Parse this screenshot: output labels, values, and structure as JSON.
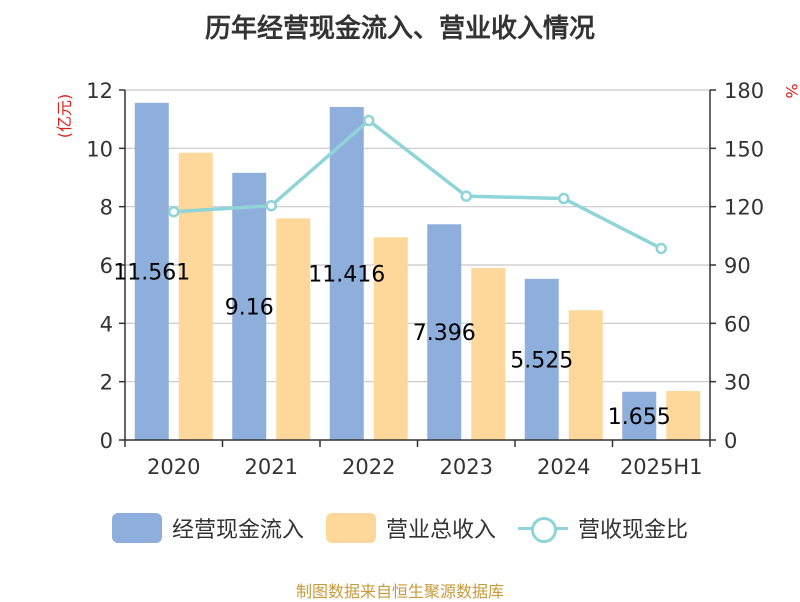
{
  "title": "历年经营现金流入、营业收入情况",
  "source": "制图数据来自恒生聚源数据库",
  "left_unit": "(亿元)",
  "right_unit": "%",
  "legend": [
    "经营现金流入",
    "营业总收入",
    "营收现金比"
  ],
  "colors": {
    "cash_inflow": "#8eaedb",
    "revenue": "#fdd89a",
    "ratio": "#8ed4d8",
    "axis_unit": "#e0201c"
  },
  "chart_data": {
    "type": "bar",
    "categories": [
      "2020",
      "2021",
      "2022",
      "2023",
      "2024",
      "2025H1"
    ],
    "series": [
      {
        "name": "经营现金流入",
        "type": "bar",
        "axis": "left",
        "values": [
          11.561,
          9.16,
          11.416,
          7.396,
          5.525,
          1.655
        ],
        "labels": [
          "11.561",
          "9.16",
          "11.416",
          "7.396",
          "5.525",
          "1.655"
        ]
      },
      {
        "name": "营业总收入",
        "type": "bar",
        "axis": "left",
        "values": [
          9.85,
          7.6,
          6.95,
          5.9,
          4.45,
          1.68
        ]
      },
      {
        "name": "营收现金比",
        "type": "line",
        "axis": "right",
        "values": [
          117.4,
          120.5,
          164.3,
          125.4,
          124.2,
          98.5
        ]
      }
    ],
    "left_axis": {
      "ylim": [
        0,
        12
      ],
      "ticks": [
        "0",
        "2",
        "4",
        "6",
        "8",
        "10",
        "12"
      ]
    },
    "right_axis": {
      "ylim": [
        0,
        180
      ],
      "ticks": [
        "0",
        "30",
        "60",
        "90",
        "120",
        "150",
        "180"
      ]
    },
    "grid": true,
    "legend_position": "bottom"
  }
}
